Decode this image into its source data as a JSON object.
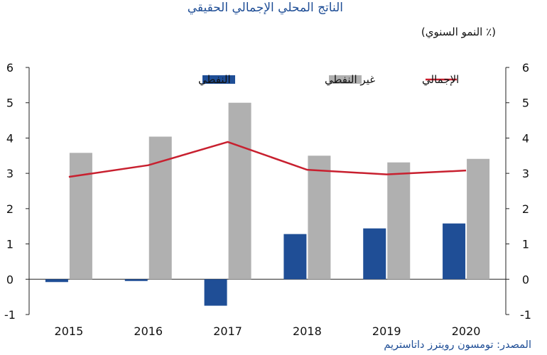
{
  "chart_data": {
    "type": "bar",
    "title": "الناتج المحلي الإجمالي الحقيقي",
    "subtitle": "(٪ النمو السنوي)",
    "source": "المصدر: تومسون رويترز داتاستريم",
    "categories": [
      "2015",
      "2016",
      "2017",
      "2018",
      "2019",
      "2020"
    ],
    "series": [
      {
        "name": "النفطي",
        "kind": "bar",
        "color": "#1f4e96",
        "values": [
          -0.08,
          -0.05,
          -0.75,
          1.28,
          1.44,
          1.58
        ]
      },
      {
        "name": "غير النفطي",
        "kind": "bar",
        "color": "#b0b0b0",
        "values": [
          3.58,
          4.04,
          5.0,
          3.5,
          3.31,
          3.41
        ]
      },
      {
        "name": "الإجمالي",
        "kind": "line",
        "color": "#c8202f",
        "values": [
          2.9,
          3.23,
          3.89,
          3.1,
          2.97,
          3.08
        ]
      }
    ],
    "ylim": [
      -1,
      6
    ],
    "yticks": [
      "-1",
      "0",
      "1",
      "2",
      "3",
      "4",
      "5",
      "6"
    ],
    "grid": false,
    "legend_position": "top"
  }
}
